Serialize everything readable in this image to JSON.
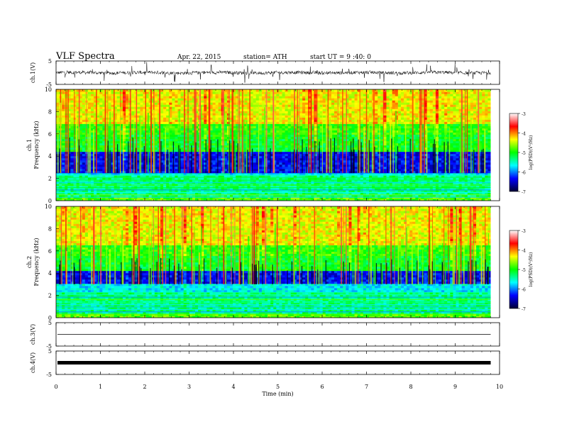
{
  "header": {
    "title": "VLF  Spectra",
    "date": "Apr. 22, 2015",
    "station": "station= ATH",
    "start": "start  UT  =   9  :40: 0"
  },
  "chart_data": {
    "type": "heatmap",
    "x_axis": {
      "label": "Time  (min)",
      "range": [
        0,
        10
      ],
      "ticks": [
        0,
        1,
        2,
        3,
        4,
        5,
        6,
        7,
        8,
        9,
        10
      ],
      "data_end_min": 9.8
    },
    "panels": [
      {
        "id": "ch1-wave",
        "kind": "waveform",
        "ylabel": "ch.1(V)",
        "ylim": [
          -5,
          5
        ],
        "yticks": [
          "5",
          "-5"
        ]
      },
      {
        "id": "ch1-spec",
        "kind": "spectrogram",
        "ylabel_top": "ch.1",
        "ylabel": "Frequency  (kHz)",
        "ylim": [
          0,
          10
        ],
        "yticks": [
          0,
          2,
          4,
          6,
          8,
          10
        ],
        "dark_band_khz": [
          2.5,
          4.5
        ],
        "green_band_khz": [
          4.5,
          6.0
        ],
        "hot_band_khz": [
          7.0,
          10.0
        ],
        "low_lines_khz": [
          0.3,
          2.3
        ]
      },
      {
        "id": "ch2-spec",
        "kind": "spectrogram",
        "ylabel_top": "ch.2",
        "ylabel": "Frequency  (kHz)",
        "ylim": [
          0,
          10
        ],
        "yticks": [
          0,
          2,
          4,
          6,
          8,
          10
        ],
        "dark_band_khz": [
          3.0,
          4.2
        ],
        "green_band_khz": [
          4.2,
          5.6
        ],
        "hot_band_khz": [
          6.5,
          10.0
        ],
        "low_lines_khz": [
          0.3,
          2.4
        ]
      },
      {
        "id": "ch3-wave",
        "kind": "waveform",
        "ylabel": "ch.3(V)",
        "ylim": [
          -5,
          5
        ],
        "yticks": [
          "5",
          "-5"
        ],
        "level": 0
      },
      {
        "id": "ch4-wave",
        "kind": "waveform",
        "ylabel": "ch.4(V)",
        "ylim": [
          -5,
          5
        ],
        "yticks": [
          "5",
          "-5"
        ],
        "level": 0
      }
    ],
    "colorbar": {
      "label": "log(PSD)(V²/Hz)",
      "range": [
        -7,
        -3
      ],
      "ticks": [
        "-3",
        "-4",
        "-5",
        "-6",
        "-7"
      ],
      "colors": [
        "#000033",
        "#0000ff",
        "#00ffff",
        "#00ff00",
        "#ffff00",
        "#ff0000",
        "#ffffff"
      ]
    }
  }
}
